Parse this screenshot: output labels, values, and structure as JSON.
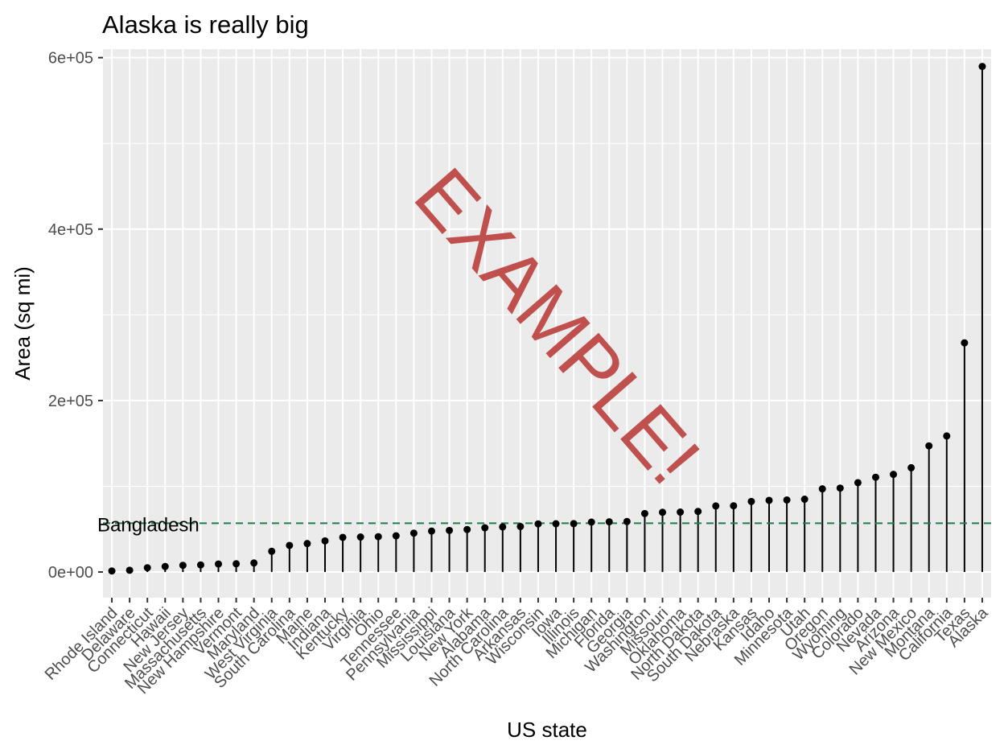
{
  "chart_data": {
    "type": "lollipop",
    "title": "Alaska is really big",
    "xlabel": "US state",
    "ylabel": "Area (sq mi)",
    "ylim": [
      -30000,
      610000
    ],
    "yticks": [
      0,
      200000,
      400000,
      600000
    ],
    "ytick_labels": [
      "0e+00",
      "2e+05",
      "4e+05",
      "6e+05"
    ],
    "grid": true,
    "colors": {
      "panel": "#ebebeb",
      "grid": "#ffffff",
      "points": "#000000",
      "reference": "#1b7f4a",
      "watermark": "#c0504d"
    },
    "categories": [
      "Rhode Island",
      "Delaware",
      "Connecticut",
      "Hawaii",
      "New Jersey",
      "Massachusetts",
      "New Hampshire",
      "Vermont",
      "Maryland",
      "West Virginia",
      "South Carolina",
      "Maine",
      "Indiana",
      "Kentucky",
      "Virginia",
      "Ohio",
      "Tennessee",
      "Pennsylvania",
      "Mississippi",
      "Louisiana",
      "New York",
      "Alabama",
      "North Carolina",
      "Arkansas",
      "Wisconsin",
      "Iowa",
      "Illinois",
      "Michigan",
      "Florida",
      "Georgia",
      "Washington",
      "Missouri",
      "Oklahoma",
      "North Dakota",
      "South Dakota",
      "Nebraska",
      "Kansas",
      "Idaho",
      "Minnesota",
      "Utah",
      "Oregon",
      "Wyoming",
      "Colorado",
      "Nevada",
      "Arizona",
      "New Mexico",
      "Montana",
      "California",
      "Texas",
      "Alaska"
    ],
    "values": [
      1214,
      2057,
      5009,
      6450,
      7787,
      8257,
      9304,
      9609,
      10577,
      24181,
      31055,
      33215,
      36291,
      40395,
      40815,
      41222,
      42244,
      45333,
      47716,
      48523,
      49576,
      51609,
      52586,
      53104,
      56154,
      56290,
      56400,
      58216,
      58560,
      58876,
      68192,
      69686,
      69919,
      70665,
      77047,
      77227,
      82264,
      83557,
      84068,
      84916,
      96981,
      97914,
      104247,
      110540,
      113909,
      121666,
      147138,
      158693,
      267339,
      589757
    ],
    "reference_line": {
      "label": "Bangladesh",
      "value": 56977
    },
    "watermark": "EXAMPLE!"
  }
}
